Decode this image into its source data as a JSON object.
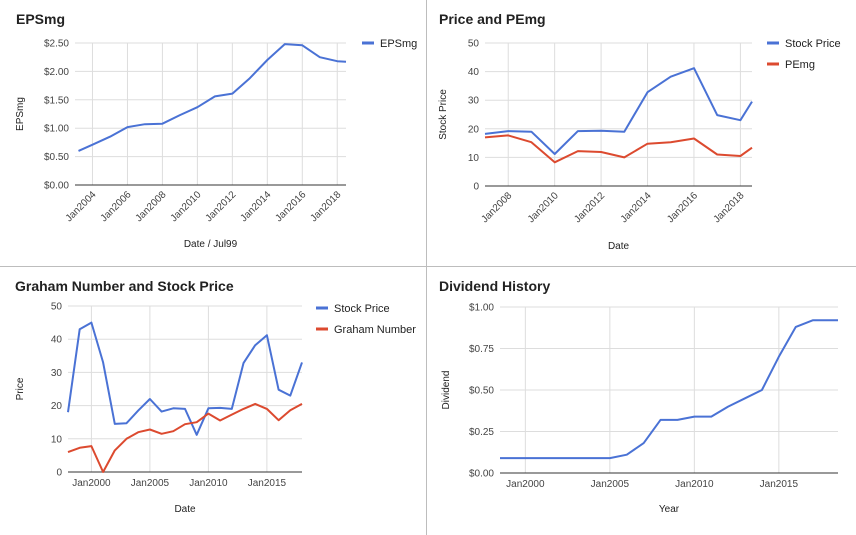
{
  "colors": {
    "blue": "#4a72d5",
    "red": "#dc4a2f",
    "grid": "#dddddd",
    "axis": "#333333"
  },
  "chart_data": [
    {
      "type": "line",
      "title": "EPSmg",
      "xlabel": "Date / Jul99",
      "ylabel": "EPSmg",
      "x_kind": "year",
      "xlim": [
        2003.0,
        2018.5
      ],
      "ylim": [
        0,
        2.5
      ],
      "x_ticks": [
        2004,
        2006,
        2008,
        2010,
        2012,
        2014,
        2016,
        2018
      ],
      "x_tick_labels": [
        "Jan2004",
        "Jan2006",
        "Jan2008",
        "Jan2010",
        "Jan2012",
        "Jan2014",
        "Jan2016",
        "Jan2018"
      ],
      "x_ticks_rotated": true,
      "y_ticks": [
        0,
        0.5,
        1.0,
        1.5,
        2.0,
        2.5
      ],
      "y_tick_labels": [
        "$0.00",
        "$0.50",
        "$1.00",
        "$1.50",
        "$2.00",
        "$2.50"
      ],
      "x_grid": true,
      "legend_position": "right",
      "series": [
        {
          "name": "EPSmg",
          "color": "#4a72d5",
          "x": [
            2003.2,
            2004,
            2005,
            2006,
            2007,
            2008,
            2009,
            2010,
            2011,
            2012,
            2013,
            2014,
            2015,
            2016,
            2017,
            2018,
            2018.5
          ],
          "y": [
            0.6,
            0.71,
            0.85,
            1.02,
            1.07,
            1.08,
            1.23,
            1.37,
            1.56,
            1.61,
            1.88,
            2.2,
            2.48,
            2.46,
            2.25,
            2.18,
            2.17
          ]
        }
      ]
    },
    {
      "type": "line",
      "title": "Price and PEmg",
      "xlabel": "Date",
      "ylabel": "Stock Price",
      "x_kind": "year",
      "xlim": [
        2007.0,
        2018.5
      ],
      "ylim": [
        0,
        50
      ],
      "x_ticks": [
        2008,
        2010,
        2012,
        2014,
        2016,
        2018
      ],
      "x_tick_labels": [
        "Jan2008",
        "Jan2010",
        "Jan2012",
        "Jan2014",
        "Jan2016",
        "Jan2018"
      ],
      "x_ticks_rotated": true,
      "y_ticks": [
        0,
        10,
        20,
        30,
        40,
        50
      ],
      "y_tick_labels": [
        "0",
        "10",
        "20",
        "30",
        "40",
        "50"
      ],
      "x_grid": true,
      "legend_position": "right",
      "series": [
        {
          "name": "Stock Price",
          "color": "#4a72d5",
          "x": [
            2007.0,
            2008,
            2009,
            2010,
            2011,
            2012,
            2013,
            2014,
            2015,
            2016,
            2017,
            2018,
            2018.5
          ],
          "y": [
            18.2,
            19.2,
            19.0,
            11.2,
            19.2,
            19.3,
            19.0,
            32.8,
            38.2,
            41.2,
            24.8,
            23.0,
            29.5
          ]
        },
        {
          "name": "PEmg",
          "color": "#dc4a2f",
          "x": [
            2007.0,
            2008,
            2009,
            2010,
            2011,
            2012,
            2013,
            2014,
            2015,
            2016,
            2017,
            2018,
            2018.5
          ],
          "y": [
            17.0,
            17.7,
            15.3,
            8.3,
            12.2,
            11.9,
            10.0,
            14.8,
            15.3,
            16.6,
            11.0,
            10.5,
            13.4
          ]
        }
      ]
    },
    {
      "type": "line",
      "title": "Graham Number and Stock Price",
      "xlabel": "Date",
      "ylabel": "Price",
      "x_kind": "year",
      "xlim": [
        1998.0,
        2018.0
      ],
      "ylim": [
        0,
        50
      ],
      "x_ticks": [
        2000,
        2005,
        2010,
        2015
      ],
      "x_tick_labels": [
        "Jan2000",
        "Jan2005",
        "Jan2010",
        "Jan2015"
      ],
      "x_ticks_rotated": false,
      "y_ticks": [
        0,
        10,
        20,
        30,
        40,
        50
      ],
      "y_tick_labels": [
        "0",
        "10",
        "20",
        "30",
        "40",
        "50"
      ],
      "x_grid": true,
      "legend_position": "right",
      "series": [
        {
          "name": "Stock Price",
          "color": "#4a72d5",
          "x": [
            1998.0,
            1999,
            2000,
            2001,
            2002,
            2003,
            2004,
            2005,
            2006,
            2007,
            2008,
            2009,
            2010,
            2011,
            2012,
            2013,
            2014,
            2015,
            2016,
            2017,
            2018
          ],
          "y": [
            18,
            43,
            45,
            33,
            14.5,
            14.7,
            18.5,
            22,
            18.2,
            19.2,
            19,
            11.2,
            19.2,
            19.3,
            19.0,
            32.8,
            38.2,
            41.2,
            24.8,
            23.0,
            33
          ]
        },
        {
          "name": "Graham Number",
          "color": "#dc4a2f",
          "x": [
            1998.0,
            1999,
            2000,
            2001,
            2002,
            2003,
            2004,
            2005,
            2006,
            2007,
            2008,
            2009,
            2010,
            2011,
            2012,
            2013,
            2014,
            2015,
            2016,
            2017,
            2018
          ],
          "y": [
            6,
            7.3,
            7.8,
            0,
            6.5,
            10,
            12,
            12.8,
            11.5,
            12.3,
            14.4,
            15,
            17.6,
            15.5,
            17.3,
            19,
            20.5,
            19,
            15.6,
            18.6,
            20.5
          ]
        }
      ]
    },
    {
      "type": "line",
      "title": "Dividend History",
      "xlabel": "Year",
      "ylabel": "Dividend",
      "x_kind": "year",
      "xlim": [
        1998.5,
        2018.5
      ],
      "ylim": [
        0,
        1.0
      ],
      "x_ticks": [
        2000,
        2005,
        2010,
        2015
      ],
      "x_tick_labels": [
        "Jan2000",
        "Jan2005",
        "Jan2010",
        "Jan2015"
      ],
      "x_ticks_rotated": false,
      "y_ticks": [
        0,
        0.25,
        0.5,
        0.75,
        1.0
      ],
      "y_tick_labels": [
        "$0.00",
        "$0.25",
        "$0.50",
        "$0.75",
        "$1.00"
      ],
      "x_grid": true,
      "legend_position": "none",
      "series": [
        {
          "name": "",
          "color": "#4a72d5",
          "x": [
            1998.5,
            2005,
            2006,
            2007,
            2008,
            2009,
            2010,
            2011,
            2012,
            2013,
            2014,
            2015,
            2016,
            2017,
            2018.5
          ],
          "y": [
            0.09,
            0.09,
            0.11,
            0.18,
            0.32,
            0.32,
            0.34,
            0.34,
            0.4,
            0.45,
            0.5,
            0.7,
            0.88,
            0.92,
            0.92
          ]
        }
      ]
    }
  ]
}
